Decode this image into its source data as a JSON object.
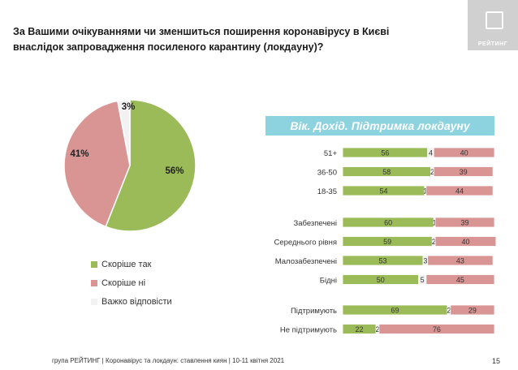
{
  "title": "За Вашими очікуваннями чи зменшиться поширення коронавірусу в Києві внаслідок запровадження посиленого карантину (локдауну)?",
  "logo_text": "РЕЙТИНГ",
  "banner": "Вік. Дохід. Підтримка локдауну",
  "footer": "група РЕЙТИНГ | Коронавірус та локдаун: ставлення киян | 10-11 квітня 2021",
  "page_number": "15",
  "colors": {
    "yes": "#9bbb59",
    "no": "#d99594",
    "hard": "#f2f2f2",
    "banner": "#8dd3df"
  },
  "chart_data": [
    {
      "type": "pie",
      "title": "",
      "labels": [
        "Скоріше так",
        "Скоріше ні",
        "Важко відповісти"
      ],
      "values": [
        56,
        41,
        3
      ],
      "value_labels": [
        "56%",
        "41%",
        "3%"
      ],
      "legend": "bottom-left"
    },
    {
      "type": "bar",
      "stacked": true,
      "orientation": "horizontal",
      "title": "Вік. Дохід. Підтримка локдауну",
      "series_names": [
        "Скоріше так",
        "Важко відповісти",
        "Скоріше ні"
      ],
      "groups": [
        {
          "rows": [
            {
              "label": "51+",
              "values": [
                56,
                4,
                40
              ]
            },
            {
              "label": "36-50",
              "values": [
                58,
                2,
                39
              ]
            },
            {
              "label": "18-35",
              "values": [
                54,
                1,
                44
              ]
            }
          ]
        },
        {
          "rows": [
            {
              "label": "Забезпечені",
              "values": [
                60,
                1,
                39
              ]
            },
            {
              "label": "Середнього рівня",
              "values": [
                59,
                2,
                40
              ]
            },
            {
              "label": "Малозабезпечені",
              "values": [
                53,
                3,
                43
              ]
            },
            {
              "label": "Бідні",
              "values": [
                50,
                5,
                45
              ]
            }
          ]
        },
        {
          "rows": [
            {
              "label": "Підтримують",
              "values": [
                69,
                2,
                29
              ]
            },
            {
              "label": "Не підтримують",
              "values": [
                22,
                2,
                76
              ]
            }
          ]
        }
      ]
    }
  ]
}
